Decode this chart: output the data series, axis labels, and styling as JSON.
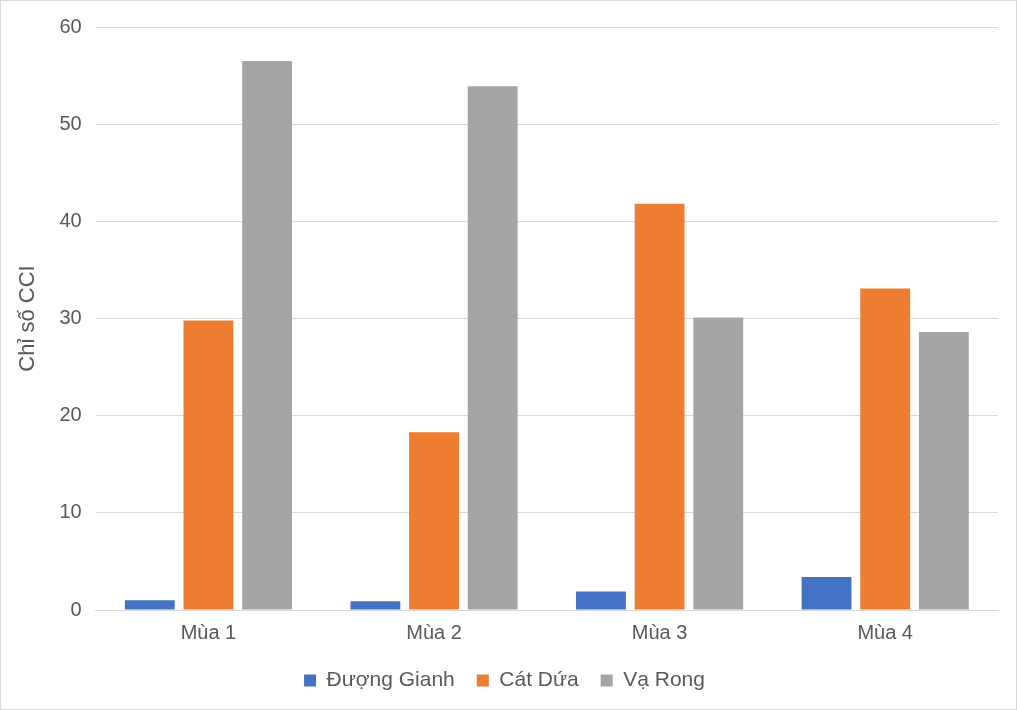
{
  "chart_data": {
    "type": "bar",
    "ylabel": "Chỉ số CCI",
    "categories": [
      "Mùa 1",
      "Mùa 2",
      "Mùa 3",
      "Mùa 4"
    ],
    "series": [
      {
        "name": "Đượng Gianh",
        "color": "#4472c4",
        "values": [
          1.0,
          0.9,
          1.9,
          3.4
        ]
      },
      {
        "name": "Cát Dứa",
        "color": "#ed7d31",
        "values": [
          29.8,
          18.3,
          41.8,
          33.1
        ]
      },
      {
        "name": "Vạ Rong",
        "color": "#a5a5a5",
        "values": [
          56.5,
          53.9,
          30.1,
          28.6
        ]
      }
    ],
    "ylim": [
      0,
      60
    ],
    "yticks": [
      0,
      10,
      20,
      30,
      40,
      50,
      60
    ],
    "grid": "y",
    "legend": "bottom"
  }
}
